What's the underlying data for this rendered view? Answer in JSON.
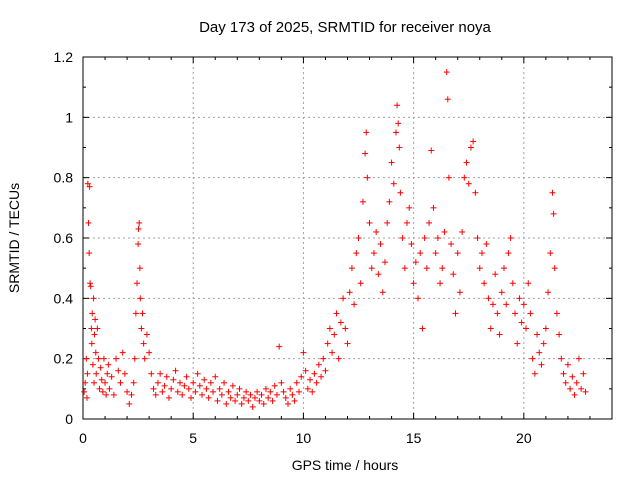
{
  "chart_data": {
    "type": "scatter",
    "title": "Day 173 of 2025, SRMTID for receiver noya",
    "xlabel": "GPS time / hours",
    "ylabel": "SRMTID / TECUs",
    "xlim": [
      0,
      24
    ],
    "ylim": [
      0,
      1.2
    ],
    "x_ticks": [
      0,
      5,
      10,
      15,
      20
    ],
    "x_tick_labels": [
      "0",
      "5",
      "10",
      "15",
      "20"
    ],
    "y_ticks": [
      0,
      0.2,
      0.4,
      0.6,
      0.8,
      1,
      1.2
    ],
    "y_tick_labels": [
      "0",
      "0.2",
      "0.4",
      "0.6",
      "0.8",
      "1",
      "1.2"
    ],
    "grid": true,
    "marker": "+",
    "series": [
      {
        "name": "SRMTID",
        "color": "#ff0000",
        "points": [
          [
            0.05,
            0.09
          ],
          [
            0.1,
            0.12
          ],
          [
            0.15,
            0.2
          ],
          [
            0.18,
            0.07
          ],
          [
            0.2,
            0.15
          ],
          [
            0.22,
            0.78
          ],
          [
            0.25,
            0.65
          ],
          [
            0.28,
            0.55
          ],
          [
            0.3,
            0.77
          ],
          [
            0.32,
            0.45
          ],
          [
            0.35,
            0.44
          ],
          [
            0.38,
            0.3
          ],
          [
            0.4,
            0.25
          ],
          [
            0.42,
            0.35
          ],
          [
            0.45,
            0.18
          ],
          [
            0.48,
            0.4
          ],
          [
            0.5,
            0.12
          ],
          [
            0.52,
            0.28
          ],
          [
            0.55,
            0.33
          ],
          [
            0.58,
            0.22
          ],
          [
            0.6,
            0.15
          ],
          [
            0.65,
            0.3
          ],
          [
            0.7,
            0.2
          ],
          [
            0.75,
            0.1
          ],
          [
            0.8,
            0.17
          ],
          [
            0.85,
            0.13
          ],
          [
            0.9,
            0.09
          ],
          [
            0.95,
            0.2
          ],
          [
            1.0,
            0.12
          ],
          [
            1.05,
            0.08
          ],
          [
            1.1,
            0.15
          ],
          [
            1.15,
            0.18
          ],
          [
            1.2,
            0.1
          ],
          [
            1.3,
            0.14
          ],
          [
            1.4,
            0.08
          ],
          [
            1.5,
            0.2
          ],
          [
            1.6,
            0.16
          ],
          [
            1.7,
            0.12
          ],
          [
            1.8,
            0.22
          ],
          [
            1.9,
            0.15
          ],
          [
            2.0,
            0.09
          ],
          [
            2.1,
            0.05
          ],
          [
            2.2,
            0.08
          ],
          [
            2.3,
            0.12
          ],
          [
            2.35,
            0.2
          ],
          [
            2.4,
            0.35
          ],
          [
            2.45,
            0.45
          ],
          [
            2.5,
            0.58
          ],
          [
            2.52,
            0.63
          ],
          [
            2.55,
            0.65
          ],
          [
            2.58,
            0.5
          ],
          [
            2.6,
            0.4
          ],
          [
            2.65,
            0.3
          ],
          [
            2.7,
            0.35
          ],
          [
            2.75,
            0.25
          ],
          [
            2.8,
            0.2
          ],
          [
            2.9,
            0.28
          ],
          [
            3.0,
            0.22
          ],
          [
            3.1,
            0.15
          ],
          [
            3.2,
            0.1
          ],
          [
            3.3,
            0.08
          ],
          [
            3.4,
            0.12
          ],
          [
            3.5,
            0.15
          ],
          [
            3.6,
            0.09
          ],
          [
            3.7,
            0.11
          ],
          [
            3.8,
            0.14
          ],
          [
            3.9,
            0.07
          ],
          [
            4.0,
            0.1
          ],
          [
            4.1,
            0.13
          ],
          [
            4.2,
            0.16
          ],
          [
            4.3,
            0.09
          ],
          [
            4.4,
            0.12
          ],
          [
            4.5,
            0.08
          ],
          [
            4.6,
            0.11
          ],
          [
            4.7,
            0.14
          ],
          [
            4.8,
            0.1
          ],
          [
            4.9,
            0.07
          ],
          [
            5.0,
            0.12
          ],
          [
            5.1,
            0.09
          ],
          [
            5.2,
            0.15
          ],
          [
            5.3,
            0.11
          ],
          [
            5.4,
            0.08
          ],
          [
            5.5,
            0.13
          ],
          [
            5.6,
            0.1
          ],
          [
            5.7,
            0.07
          ],
          [
            5.8,
            0.12
          ],
          [
            5.9,
            0.09
          ],
          [
            6.0,
            0.14
          ],
          [
            6.1,
            0.06
          ],
          [
            6.2,
            0.1
          ],
          [
            6.3,
            0.08
          ],
          [
            6.4,
            0.12
          ],
          [
            6.5,
            0.05
          ],
          [
            6.6,
            0.09
          ],
          [
            6.7,
            0.07
          ],
          [
            6.8,
            0.11
          ],
          [
            6.9,
            0.06
          ],
          [
            7.0,
            0.08
          ],
          [
            7.1,
            0.1
          ],
          [
            7.2,
            0.05
          ],
          [
            7.3,
            0.07
          ],
          [
            7.4,
            0.09
          ],
          [
            7.5,
            0.06
          ],
          [
            7.6,
            0.08
          ],
          [
            7.7,
            0.04
          ],
          [
            7.8,
            0.07
          ],
          [
            7.9,
            0.09
          ],
          [
            8.0,
            0.06
          ],
          [
            8.1,
            0.08
          ],
          [
            8.2,
            0.05
          ],
          [
            8.3,
            0.1
          ],
          [
            8.4,
            0.07
          ],
          [
            8.5,
            0.09
          ],
          [
            8.6,
            0.06
          ],
          [
            8.7,
            0.11
          ],
          [
            8.8,
            0.08
          ],
          [
            8.9,
            0.24
          ],
          [
            9.0,
            0.12
          ],
          [
            9.1,
            0.09
          ],
          [
            9.2,
            0.07
          ],
          [
            9.3,
            0.05
          ],
          [
            9.4,
            0.1
          ],
          [
            9.5,
            0.08
          ],
          [
            9.6,
            0.06
          ],
          [
            9.7,
            0.12
          ],
          [
            9.8,
            0.09
          ],
          [
            9.9,
            0.14
          ],
          [
            10.0,
            0.22
          ],
          [
            10.1,
            0.16
          ],
          [
            10.2,
            0.1
          ],
          [
            10.3,
            0.13
          ],
          [
            10.4,
            0.09
          ],
          [
            10.5,
            0.15
          ],
          [
            10.6,
            0.12
          ],
          [
            10.7,
            0.18
          ],
          [
            10.8,
            0.14
          ],
          [
            10.9,
            0.2
          ],
          [
            11.0,
            0.16
          ],
          [
            11.1,
            0.25
          ],
          [
            11.2,
            0.3
          ],
          [
            11.3,
            0.22
          ],
          [
            11.4,
            0.28
          ],
          [
            11.5,
            0.35
          ],
          [
            11.6,
            0.2
          ],
          [
            11.7,
            0.32
          ],
          [
            11.8,
            0.4
          ],
          [
            11.9,
            0.3
          ],
          [
            12.0,
            0.25
          ],
          [
            12.1,
            0.42
          ],
          [
            12.2,
            0.5
          ],
          [
            12.3,
            0.38
          ],
          [
            12.4,
            0.55
          ],
          [
            12.5,
            0.6
          ],
          [
            12.6,
            0.45
          ],
          [
            12.7,
            0.72
          ],
          [
            12.8,
            0.88
          ],
          [
            12.85,
            0.95
          ],
          [
            12.9,
            0.8
          ],
          [
            13.0,
            0.65
          ],
          [
            13.1,
            0.5
          ],
          [
            13.2,
            0.55
          ],
          [
            13.3,
            0.62
          ],
          [
            13.4,
            0.48
          ],
          [
            13.5,
            0.58
          ],
          [
            13.6,
            0.42
          ],
          [
            13.7,
            0.52
          ],
          [
            13.8,
            0.65
          ],
          [
            13.9,
            0.72
          ],
          [
            14.0,
            0.85
          ],
          [
            14.1,
            0.78
          ],
          [
            14.2,
            0.95
          ],
          [
            14.25,
            1.04
          ],
          [
            14.3,
            0.98
          ],
          [
            14.35,
            0.9
          ],
          [
            14.4,
            0.75
          ],
          [
            14.5,
            0.6
          ],
          [
            14.6,
            0.5
          ],
          [
            14.7,
            0.65
          ],
          [
            14.8,
            0.7
          ],
          [
            14.9,
            0.58
          ],
          [
            15.0,
            0.45
          ],
          [
            15.1,
            0.52
          ],
          [
            15.2,
            0.4
          ],
          [
            15.3,
            0.55
          ],
          [
            15.4,
            0.3
          ],
          [
            15.5,
            0.6
          ],
          [
            15.6,
            0.5
          ],
          [
            15.7,
            0.65
          ],
          [
            15.8,
            0.89
          ],
          [
            15.9,
            0.7
          ],
          [
            16.0,
            0.55
          ],
          [
            16.1,
            0.6
          ],
          [
            16.2,
            0.45
          ],
          [
            16.3,
            0.5
          ],
          [
            16.4,
            0.62
          ],
          [
            16.5,
            1.15
          ],
          [
            16.55,
            1.06
          ],
          [
            16.6,
            0.8
          ],
          [
            16.7,
            0.58
          ],
          [
            16.8,
            0.48
          ],
          [
            16.9,
            0.35
          ],
          [
            17.0,
            0.55
          ],
          [
            17.1,
            0.42
          ],
          [
            17.2,
            0.62
          ],
          [
            17.3,
            0.8
          ],
          [
            17.4,
            0.85
          ],
          [
            17.5,
            0.78
          ],
          [
            17.6,
            0.9
          ],
          [
            17.7,
            0.92
          ],
          [
            17.8,
            0.75
          ],
          [
            17.9,
            0.6
          ],
          [
            18.0,
            0.5
          ],
          [
            18.1,
            0.55
          ],
          [
            18.2,
            0.45
          ],
          [
            18.3,
            0.58
          ],
          [
            18.4,
            0.4
          ],
          [
            18.5,
            0.3
          ],
          [
            18.6,
            0.38
          ],
          [
            18.7,
            0.48
          ],
          [
            18.8,
            0.35
          ],
          [
            18.9,
            0.28
          ],
          [
            19.0,
            0.42
          ],
          [
            19.1,
            0.5
          ],
          [
            19.2,
            0.38
          ],
          [
            19.3,
            0.55
          ],
          [
            19.4,
            0.6
          ],
          [
            19.5,
            0.45
          ],
          [
            19.6,
            0.35
          ],
          [
            19.7,
            0.25
          ],
          [
            19.8,
            0.4
          ],
          [
            19.9,
            0.32
          ],
          [
            20.0,
            0.38
          ],
          [
            20.1,
            0.3
          ],
          [
            20.2,
            0.45
          ],
          [
            20.3,
            0.35
          ],
          [
            20.4,
            0.2
          ],
          [
            20.5,
            0.15
          ],
          [
            20.6,
            0.28
          ],
          [
            20.7,
            0.22
          ],
          [
            20.8,
            0.18
          ],
          [
            20.9,
            0.25
          ],
          [
            21.0,
            0.3
          ],
          [
            21.1,
            0.42
          ],
          [
            21.2,
            0.55
          ],
          [
            21.3,
            0.75
          ],
          [
            21.35,
            0.68
          ],
          [
            21.4,
            0.5
          ],
          [
            21.5,
            0.35
          ],
          [
            21.6,
            0.28
          ],
          [
            21.7,
            0.2
          ],
          [
            21.8,
            0.15
          ],
          [
            21.9,
            0.12
          ],
          [
            22.0,
            0.18
          ],
          [
            22.1,
            0.1
          ],
          [
            22.2,
            0.14
          ],
          [
            22.3,
            0.08
          ],
          [
            22.4,
            0.12
          ],
          [
            22.5,
            0.2
          ],
          [
            22.6,
            0.1
          ],
          [
            22.7,
            0.15
          ],
          [
            22.8,
            0.09
          ]
        ]
      }
    ]
  }
}
